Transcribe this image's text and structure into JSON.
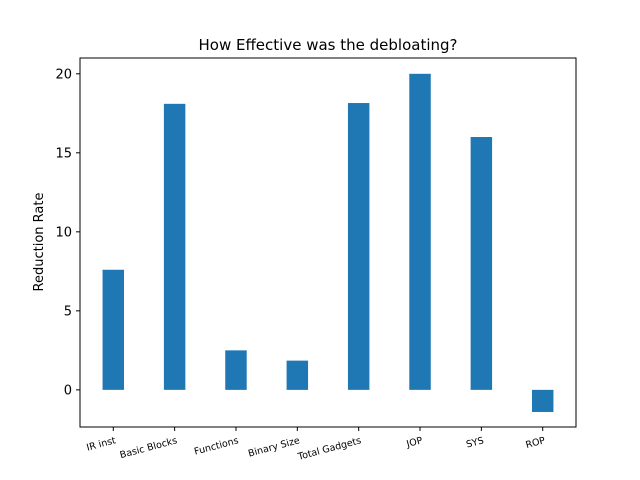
{
  "chart_data": {
    "type": "bar",
    "title": "How Effective was the debloating?",
    "xlabel": "",
    "ylabel": "Reduction Rate",
    "categories": [
      "IR inst",
      "Basic Blocks",
      "Functions",
      "Binary Size",
      "Total Gadgets",
      "JOP",
      "SYS",
      "ROP"
    ],
    "values": [
      7.6,
      18.1,
      2.5,
      1.85,
      18.15,
      20.0,
      16.0,
      -1.4
    ],
    "ylim": [
      -2.35,
      21.0
    ],
    "yticks": [
      0,
      5,
      10,
      15,
      20
    ],
    "grid": false,
    "legend": "none",
    "bar_color": "#1f77b4"
  }
}
